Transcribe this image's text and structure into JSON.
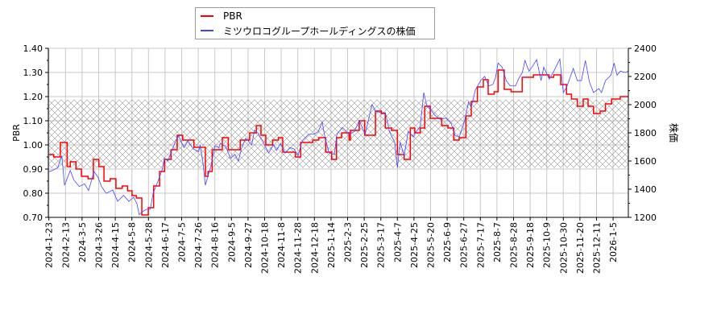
{
  "chart_data": {
    "type": "line",
    "title": "",
    "xlabel": "",
    "ylabel": "PBR",
    "ylabel_right": "株価",
    "ylim": [
      0.7,
      1.4
    ],
    "ylim_right": [
      1200,
      2400
    ],
    "yticks": [
      "0.70",
      "0.80",
      "0.90",
      "1.00",
      "1.10",
      "1.20",
      "1.30",
      "1.40"
    ],
    "yticks_right": [
      "1200",
      "1400",
      "1600",
      "1800",
      "2000",
      "2200",
      "2400"
    ],
    "x_unit": "tick index (one tick per listed date)",
    "xlim": [
      0,
      34.9
    ],
    "xticks": [
      "2024-1-23",
      "2024-2-13",
      "2024-3-5",
      "2024-3-26",
      "2024-4-15",
      "2024-5-8",
      "2024-5-28",
      "2024-6-17",
      "2024-7-5",
      "2024-7-26",
      "2024-8-16",
      "2024-9-5",
      "2024-9-27",
      "2024-10-18",
      "2024-11-8",
      "2024-11-28",
      "2024-12-18",
      "2025-1-14",
      "2025-2-3",
      "2025-2-25",
      "2025-3-17",
      "2025-4-7",
      "2025-4-25",
      "2025-5-20",
      "2025-6-9",
      "2025-6-27",
      "2025-7-17",
      "2025-8-7",
      "2025-8-28",
      "2025-9-18",
      "2025-10-9",
      "2025-10-30",
      "2025-11-20",
      "2025-12-11",
      "2026-1-5"
    ],
    "grid": true,
    "band": {
      "axis": "PBR",
      "range": [
        0.905,
        1.187
      ],
      "style": "crosshatch"
    },
    "legend": {
      "placement": "top-center",
      "entries": [
        "PBR",
        "ミツウロコグループホールディングスの株価"
      ]
    },
    "series": [
      {
        "name": "PBR",
        "axis": "left",
        "color": "#ff0000",
        "step": true,
        "points": [
          [
            0,
            0.96
          ],
          [
            0.29,
            0.95
          ],
          [
            0.69,
            1.01
          ],
          [
            1.1,
            0.91
          ],
          [
            1.29,
            0.93
          ],
          [
            1.63,
            0.9
          ],
          [
            1.96,
            0.87
          ],
          [
            2.36,
            0.86
          ],
          [
            2.68,
            0.94
          ],
          [
            3.01,
            0.91
          ],
          [
            3.32,
            0.85
          ],
          [
            3.69,
            0.86
          ],
          [
            4.04,
            0.82
          ],
          [
            4.42,
            0.83
          ],
          [
            4.74,
            0.81
          ],
          [
            5.01,
            0.79
          ],
          [
            5.27,
            0.78
          ],
          [
            5.6,
            0.71
          ],
          [
            5.99,
            0.74
          ],
          [
            6.31,
            0.83
          ],
          [
            6.67,
            0.89
          ],
          [
            6.97,
            0.94
          ],
          [
            7.36,
            0.98
          ],
          [
            7.73,
            1.04
          ],
          [
            8.06,
            1.02
          ],
          [
            8.74,
            0.99
          ],
          [
            9.43,
            0.87
          ],
          [
            9.59,
            0.89
          ],
          [
            9.84,
            0.98
          ],
          [
            10.45,
            1.03
          ],
          [
            10.81,
            0.98
          ],
          [
            11.53,
            1.02
          ],
          [
            12.1,
            1.05
          ],
          [
            12.5,
            1.08
          ],
          [
            12.78,
            1.04
          ],
          [
            13.07,
            1.0
          ],
          [
            13.48,
            1.02
          ],
          [
            13.83,
            1.03
          ],
          [
            14.09,
            0.97
          ],
          [
            14.85,
            0.95
          ],
          [
            15.17,
            1.01
          ],
          [
            15.9,
            1.02
          ],
          [
            16.26,
            1.03
          ],
          [
            16.68,
            0.97
          ],
          [
            17.04,
            0.94
          ],
          [
            17.33,
            1.03
          ],
          [
            17.64,
            1.05
          ],
          [
            18.09,
            1.02
          ],
          [
            18.17,
            1.06
          ],
          [
            18.7,
            1.1
          ],
          [
            19.03,
            1.04
          ],
          [
            19.68,
            1.14
          ],
          [
            20.03,
            1.13
          ],
          [
            20.27,
            1.07
          ],
          [
            20.65,
            1.06
          ],
          [
            21.0,
            0.96
          ],
          [
            21.41,
            0.94
          ],
          [
            21.78,
            1.07
          ],
          [
            22.05,
            1.05
          ],
          [
            22.38,
            1.07
          ],
          [
            22.65,
            1.16
          ],
          [
            22.98,
            1.11
          ],
          [
            23.67,
            1.08
          ],
          [
            24.05,
            1.07
          ],
          [
            24.4,
            1.02
          ],
          [
            24.72,
            1.03
          ],
          [
            25.13,
            1.12
          ],
          [
            25.45,
            1.18
          ],
          [
            25.82,
            1.24
          ],
          [
            26.18,
            1.27
          ],
          [
            26.47,
            1.21
          ],
          [
            26.83,
            1.22
          ],
          [
            27.07,
            1.31
          ],
          [
            27.44,
            1.23
          ],
          [
            27.85,
            1.22
          ],
          [
            28.52,
            1.28
          ],
          [
            29.2,
            1.29
          ],
          [
            30.14,
            1.28
          ],
          [
            30.42,
            1.29
          ],
          [
            30.84,
            1.25
          ],
          [
            31.19,
            1.21
          ],
          [
            31.49,
            1.19
          ],
          [
            31.84,
            1.16
          ],
          [
            32.2,
            1.19
          ],
          [
            32.49,
            1.16
          ],
          [
            32.82,
            1.13
          ],
          [
            33.22,
            1.14
          ],
          [
            33.54,
            1.17
          ],
          [
            33.91,
            1.19
          ],
          [
            34.43,
            1.2
          ],
          [
            34.9,
            1.2
          ]
        ]
      },
      {
        "name": "ミツウロコグループホールディングスの株価",
        "axis": "right",
        "color": "#4444ff",
        "step": false,
        "points": [
          [
            0,
            1524
          ],
          [
            0.21,
            1533
          ],
          [
            0.53,
            1552
          ],
          [
            0.78,
            1638
          ],
          [
            0.94,
            1428
          ],
          [
            1.1,
            1476
          ],
          [
            1.29,
            1533
          ],
          [
            1.5,
            1466
          ],
          [
            1.83,
            1419
          ],
          [
            2.15,
            1438
          ],
          [
            2.39,
            1390
          ],
          [
            2.72,
            1524
          ],
          [
            2.96,
            1485
          ],
          [
            3.17,
            1419
          ],
          [
            3.45,
            1371
          ],
          [
            3.85,
            1394
          ],
          [
            4.14,
            1314
          ],
          [
            4.5,
            1356
          ],
          [
            4.82,
            1314
          ],
          [
            5.11,
            1343
          ],
          [
            5.31,
            1295
          ],
          [
            5.44,
            1219
          ],
          [
            5.63,
            1238
          ],
          [
            5.87,
            1257
          ],
          [
            6.11,
            1257
          ],
          [
            6.28,
            1371
          ],
          [
            6.6,
            1466
          ],
          [
            6.84,
            1543
          ],
          [
            6.96,
            1619
          ],
          [
            7.17,
            1600
          ],
          [
            7.41,
            1676
          ],
          [
            7.65,
            1743
          ],
          [
            7.81,
            1781
          ],
          [
            8.14,
            1695
          ],
          [
            8.38,
            1743
          ],
          [
            8.7,
            1686
          ],
          [
            9.03,
            1666
          ],
          [
            9.11,
            1714
          ],
          [
            9.27,
            1600
          ],
          [
            9.43,
            1428
          ],
          [
            9.59,
            1495
          ],
          [
            9.76,
            1562
          ],
          [
            10.0,
            1705
          ],
          [
            10.24,
            1695
          ],
          [
            10.32,
            1724
          ],
          [
            10.65,
            1705
          ],
          [
            10.94,
            1619
          ],
          [
            11.21,
            1647
          ],
          [
            11.42,
            1600
          ],
          [
            11.62,
            1695
          ],
          [
            11.86,
            1762
          ],
          [
            12.02,
            1743
          ],
          [
            12.22,
            1714
          ],
          [
            12.39,
            1819
          ],
          [
            12.59,
            1800
          ],
          [
            12.91,
            1733
          ],
          [
            13.24,
            1657
          ],
          [
            13.53,
            1714
          ],
          [
            13.72,
            1676
          ],
          [
            13.96,
            1724
          ],
          [
            14.24,
            1657
          ],
          [
            14.53,
            1695
          ],
          [
            14.77,
            1686
          ],
          [
            15.02,
            1638
          ],
          [
            15.26,
            1743
          ],
          [
            15.66,
            1790
          ],
          [
            15.98,
            1790
          ],
          [
            16.23,
            1809
          ],
          [
            16.47,
            1876
          ],
          [
            16.63,
            1771
          ],
          [
            16.88,
            1657
          ],
          [
            17.2,
            1647
          ],
          [
            17.36,
            1790
          ],
          [
            17.68,
            1838
          ],
          [
            18.09,
            1790
          ],
          [
            18.41,
            1809
          ],
          [
            18.7,
            1886
          ],
          [
            19.06,
            1790
          ],
          [
            19.47,
            2000
          ],
          [
            19.71,
            1952
          ],
          [
            20.03,
            1943
          ],
          [
            20.28,
            1943
          ],
          [
            20.52,
            1809
          ],
          [
            20.84,
            1733
          ],
          [
            21.0,
            1552
          ],
          [
            21.17,
            1733
          ],
          [
            21.41,
            1638
          ],
          [
            21.65,
            1809
          ],
          [
            21.97,
            1771
          ],
          [
            22.14,
            1809
          ],
          [
            22.38,
            1847
          ],
          [
            22.59,
            2086
          ],
          [
            22.78,
            1990
          ],
          [
            23.03,
            1962
          ],
          [
            23.27,
            1924
          ],
          [
            23.59,
            1895
          ],
          [
            23.92,
            1905
          ],
          [
            24.24,
            1867
          ],
          [
            24.48,
            1781
          ],
          [
            24.73,
            1771
          ],
          [
            25.05,
            1886
          ],
          [
            25.29,
            2019
          ],
          [
            25.45,
            1981
          ],
          [
            25.7,
            2105
          ],
          [
            26.02,
            2171
          ],
          [
            26.26,
            2200
          ],
          [
            26.51,
            2133
          ],
          [
            26.75,
            2143
          ],
          [
            26.91,
            2190
          ],
          [
            27.07,
            2295
          ],
          [
            27.31,
            2267
          ],
          [
            27.56,
            2171
          ],
          [
            27.8,
            2133
          ],
          [
            28.12,
            2133
          ],
          [
            28.29,
            2181
          ],
          [
            28.53,
            2228
          ],
          [
            28.69,
            2314
          ],
          [
            28.93,
            2238
          ],
          [
            29.17,
            2276
          ],
          [
            29.39,
            2320
          ],
          [
            29.66,
            2171
          ],
          [
            29.82,
            2267
          ],
          [
            30.15,
            2181
          ],
          [
            30.39,
            2228
          ],
          [
            30.79,
            2324
          ],
          [
            31.0,
            2086
          ],
          [
            31.2,
            2124
          ],
          [
            31.6,
            2257
          ],
          [
            31.84,
            2171
          ],
          [
            32.09,
            2171
          ],
          [
            32.33,
            2314
          ],
          [
            32.57,
            2162
          ],
          [
            32.82,
            2086
          ],
          [
            33.14,
            2114
          ],
          [
            33.3,
            2086
          ],
          [
            33.54,
            2171
          ],
          [
            33.87,
            2209
          ],
          [
            34.06,
            2295
          ],
          [
            34.24,
            2209
          ],
          [
            34.43,
            2238
          ],
          [
            34.76,
            2228
          ],
          [
            34.9,
            2238
          ]
        ]
      }
    ]
  }
}
